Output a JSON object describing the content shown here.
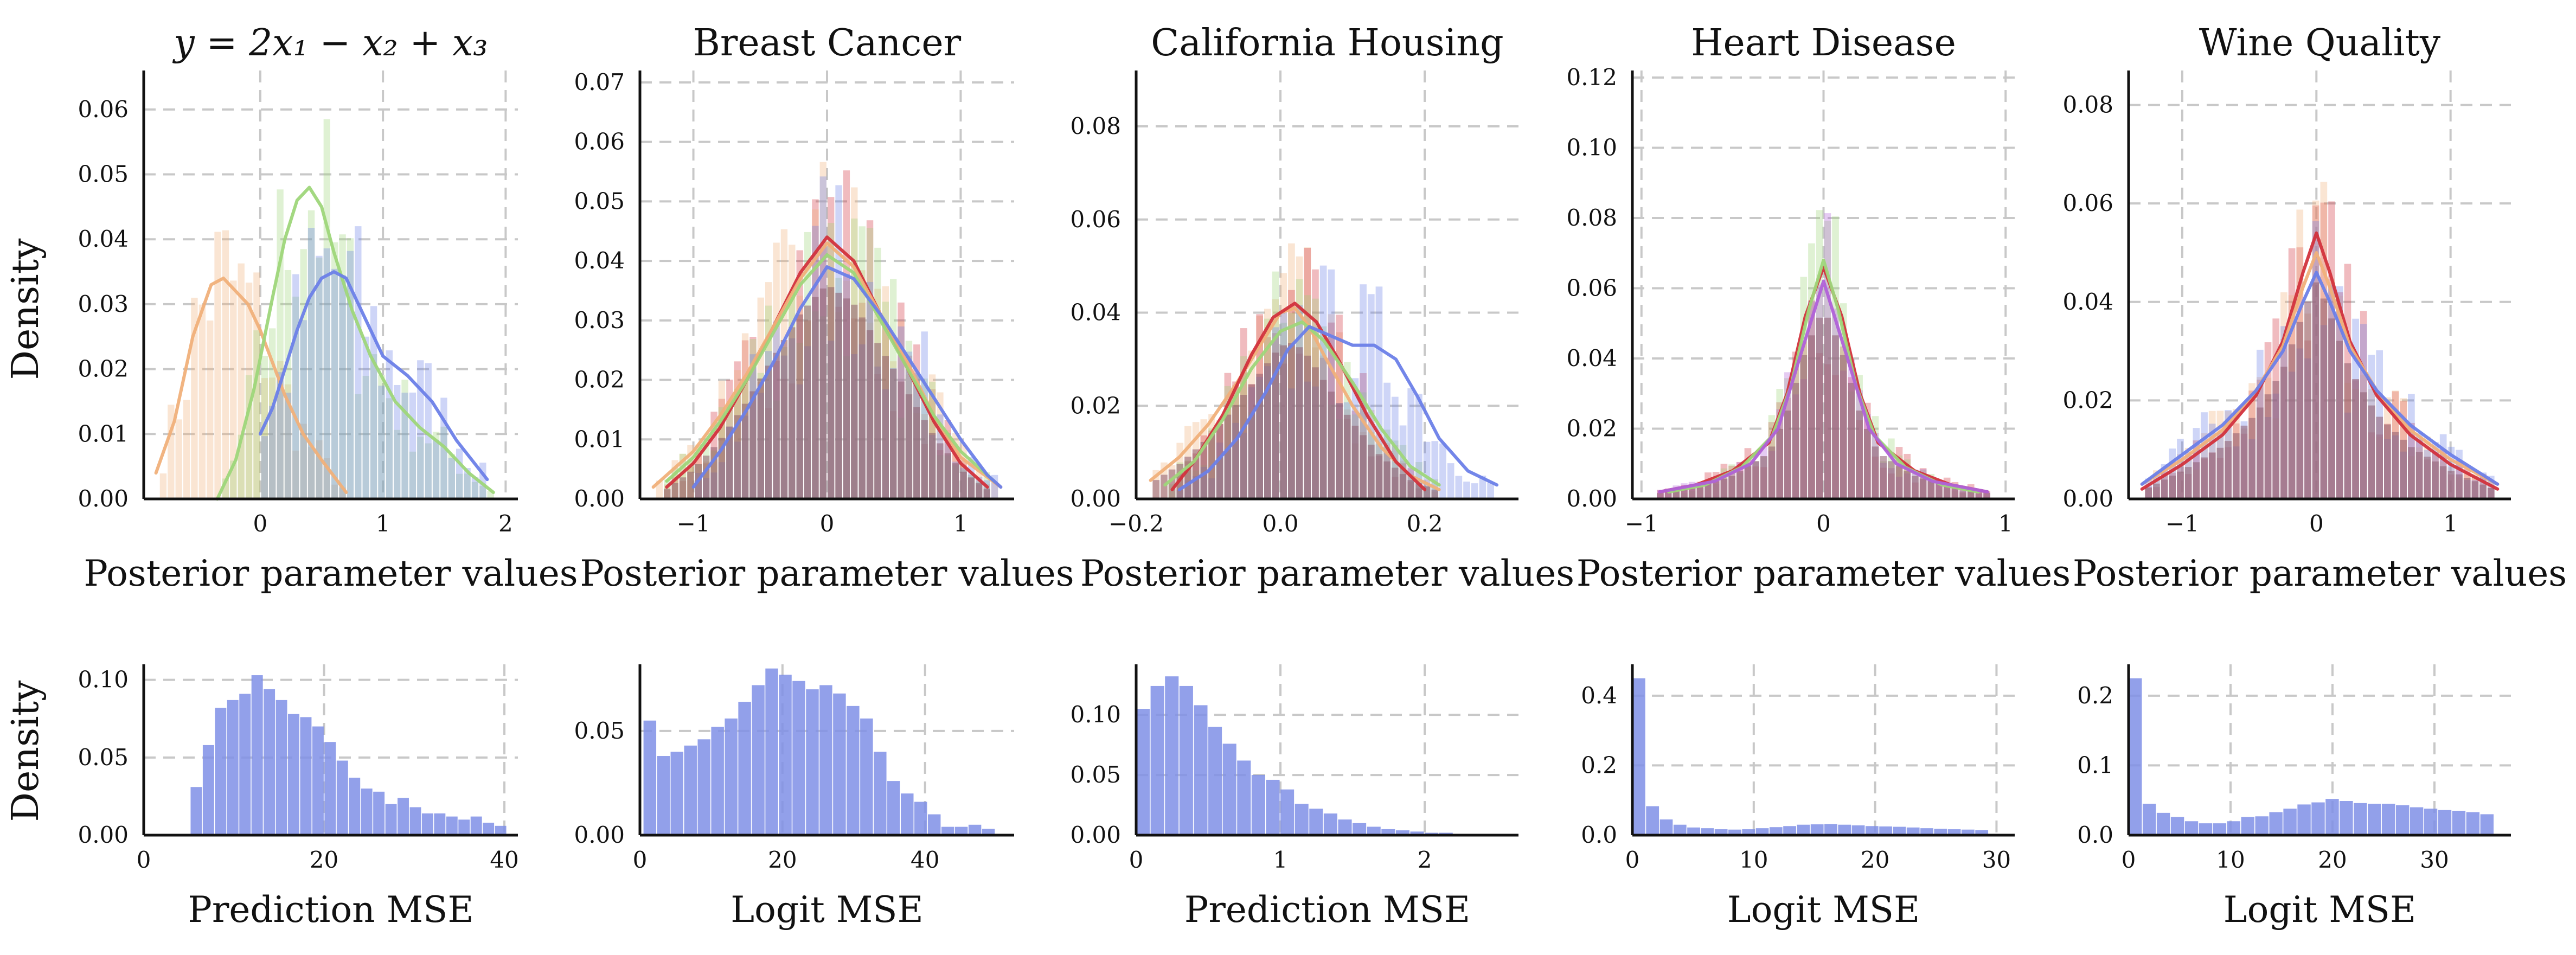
{
  "figure": {
    "ylabel_top": "Density",
    "ylabel_bottom": "Density"
  },
  "colors": {
    "blue": "#6b7fe8",
    "green": "#9ed67a",
    "orange": "#f0b07a",
    "red": "#d2323c",
    "purple": "#b061d8",
    "yellow": "#f2cf6a",
    "cyan": "#7ed3e6",
    "overlap": "#8e5b6e",
    "mse_bar": "#7f8fe6"
  },
  "chart_data": [
    {
      "type": "histogram-kde",
      "title": "y = 2x₁ − x₂ + x₃",
      "xlabel": "Posterior parameter values",
      "xlim": [
        -0.95,
        2.1
      ],
      "ylim": [
        0,
        0.066
      ],
      "xticks": [
        0,
        1,
        2
      ],
      "xtick_labels": [
        "0",
        "1",
        "2"
      ],
      "yticks": [
        0,
        0.01,
        0.02,
        0.03,
        0.04,
        0.05,
        0.06
      ],
      "ytick_labels": [
        "0.00",
        "0.01",
        "0.02",
        "0.03",
        "0.04",
        "0.05",
        "0.06"
      ],
      "grid": true,
      "series": [
        {
          "color": "orange",
          "kde": {
            "x": [
              -0.85,
              -0.7,
              -0.55,
              -0.4,
              -0.3,
              -0.2,
              -0.1,
              0.0,
              0.1,
              0.2,
              0.35,
              0.5,
              0.7
            ],
            "y": [
              0.004,
              0.012,
              0.025,
              0.033,
              0.034,
              0.032,
              0.03,
              0.026,
              0.021,
              0.016,
              0.01,
              0.006,
              0.001
            ]
          }
        },
        {
          "color": "green",
          "kde": {
            "x": [
              -0.35,
              -0.2,
              -0.05,
              0.1,
              0.2,
              0.3,
              0.4,
              0.5,
              0.6,
              0.75,
              0.9,
              1.1,
              1.3,
              1.5,
              1.7,
              1.9
            ],
            "y": [
              0.0,
              0.006,
              0.017,
              0.031,
              0.04,
              0.046,
              0.048,
              0.045,
              0.038,
              0.029,
              0.022,
              0.015,
              0.011,
              0.008,
              0.004,
              0.001
            ]
          }
        },
        {
          "color": "blue",
          "kde": {
            "x": [
              0.0,
              0.1,
              0.2,
              0.3,
              0.4,
              0.5,
              0.6,
              0.7,
              0.8,
              0.9,
              1.0,
              1.2,
              1.4,
              1.6,
              1.85
            ],
            "y": [
              0.01,
              0.014,
              0.02,
              0.026,
              0.031,
              0.034,
              0.035,
              0.034,
              0.03,
              0.026,
              0.022,
              0.019,
              0.015,
              0.009,
              0.003
            ]
          }
        }
      ]
    },
    {
      "type": "histogram-kde",
      "title": "Breast Cancer",
      "xlabel": "Posterior parameter values",
      "xlim": [
        -1.4,
        1.4
      ],
      "ylim": [
        0,
        0.072
      ],
      "xticks": [
        -1,
        0,
        1
      ],
      "xtick_labels": [
        "−1",
        "0",
        "1"
      ],
      "yticks": [
        0,
        0.01,
        0.02,
        0.03,
        0.04,
        0.05,
        0.06,
        0.07
      ],
      "ytick_labels": [
        "0.00",
        "0.01",
        "0.02",
        "0.03",
        "0.04",
        "0.05",
        "0.06",
        "0.07"
      ],
      "grid": true,
      "series": [
        {
          "color": "red",
          "kde": {
            "x": [
              -1.2,
              -1.0,
              -0.8,
              -0.6,
              -0.4,
              -0.2,
              0.0,
              0.2,
              0.4,
              0.6,
              0.8,
              1.0,
              1.2
            ],
            "y": [
              0.002,
              0.006,
              0.012,
              0.02,
              0.029,
              0.038,
              0.044,
              0.04,
              0.031,
              0.022,
              0.013,
              0.006,
              0.002
            ]
          }
        },
        {
          "color": "orange",
          "kde": {
            "x": [
              -1.3,
              -1.0,
              -0.8,
              -0.6,
              -0.4,
              -0.2,
              0.0,
              0.2,
              0.4,
              0.6,
              0.8,
              1.0,
              1.3
            ],
            "y": [
              0.002,
              0.008,
              0.014,
              0.021,
              0.029,
              0.037,
              0.043,
              0.039,
              0.031,
              0.023,
              0.014,
              0.007,
              0.002
            ]
          }
        },
        {
          "color": "green",
          "kde": {
            "x": [
              -1.2,
              -1.0,
              -0.8,
              -0.6,
              -0.4,
              -0.2,
              0.0,
              0.2,
              0.4,
              0.6,
              0.8,
              1.0,
              1.25
            ],
            "y": [
              0.003,
              0.007,
              0.013,
              0.02,
              0.028,
              0.036,
              0.041,
              0.038,
              0.03,
              0.022,
              0.014,
              0.008,
              0.003
            ]
          }
        },
        {
          "color": "blue",
          "kde": {
            "x": [
              -1.0,
              -0.8,
              -0.6,
              -0.4,
              -0.2,
              0.0,
              0.2,
              0.4,
              0.6,
              0.8,
              1.0,
              1.2,
              1.3
            ],
            "y": [
              0.002,
              0.008,
              0.015,
              0.023,
              0.032,
              0.039,
              0.037,
              0.031,
              0.024,
              0.017,
              0.01,
              0.004,
              0.002
            ]
          }
        }
      ]
    },
    {
      "type": "histogram-kde",
      "title": "California Housing",
      "xlabel": "Posterior parameter values",
      "xlim": [
        -0.2,
        0.33
      ],
      "ylim": [
        0,
        0.092
      ],
      "xticks": [
        -0.2,
        0.0,
        0.2
      ],
      "xtick_labels": [
        "−0.2",
        "0.0",
        "0.2"
      ],
      "yticks": [
        0,
        0.02,
        0.04,
        0.06,
        0.08
      ],
      "ytick_labels": [
        "0.00",
        "0.02",
        "0.04",
        "0.06",
        "0.08"
      ],
      "grid": true,
      "series": [
        {
          "color": "orange",
          "kde": {
            "x": [
              -0.18,
              -0.14,
              -0.1,
              -0.06,
              -0.02,
              0.0,
              0.02,
              0.04,
              0.06,
              0.1,
              0.14,
              0.18,
              0.22
            ],
            "y": [
              0.004,
              0.009,
              0.016,
              0.025,
              0.035,
              0.04,
              0.041,
              0.037,
              0.031,
              0.02,
              0.011,
              0.005,
              0.002
            ]
          }
        },
        {
          "color": "red",
          "kde": {
            "x": [
              -0.15,
              -0.12,
              -0.08,
              -0.04,
              -0.01,
              0.02,
              0.05,
              0.08,
              0.12,
              0.16,
              0.2
            ],
            "y": [
              0.002,
              0.008,
              0.018,
              0.031,
              0.039,
              0.042,
              0.038,
              0.03,
              0.018,
              0.008,
              0.002
            ]
          }
        },
        {
          "color": "green",
          "kde": {
            "x": [
              -0.16,
              -0.12,
              -0.08,
              -0.04,
              0.0,
              0.03,
              0.06,
              0.1,
              0.14,
              0.18,
              0.22
            ],
            "y": [
              0.003,
              0.008,
              0.017,
              0.028,
              0.036,
              0.038,
              0.034,
              0.025,
              0.015,
              0.007,
              0.003
            ]
          }
        },
        {
          "color": "blue",
          "kde": {
            "x": [
              -0.14,
              -0.1,
              -0.06,
              -0.02,
              0.01,
              0.04,
              0.07,
              0.1,
              0.13,
              0.16,
              0.19,
              0.22,
              0.26,
              0.3
            ],
            "y": [
              0.002,
              0.006,
              0.013,
              0.023,
              0.032,
              0.037,
              0.035,
              0.033,
              0.033,
              0.03,
              0.022,
              0.013,
              0.006,
              0.003
            ]
          }
        }
      ]
    },
    {
      "type": "histogram-kde",
      "title": "Heart Disease",
      "xlabel": "Posterior parameter values",
      "xlim": [
        -1.05,
        1.05
      ],
      "ylim": [
        0,
        0.122
      ],
      "xticks": [
        -1,
        0,
        1
      ],
      "xtick_labels": [
        "−1",
        "0",
        "1"
      ],
      "yticks": [
        0,
        0.02,
        0.04,
        0.06,
        0.08,
        0.1,
        0.12
      ],
      "ytick_labels": [
        "0.00",
        "0.02",
        "0.04",
        "0.06",
        "0.08",
        "0.10",
        "0.12"
      ],
      "grid": true,
      "series": [
        {
          "color": "red",
          "kde": {
            "x": [
              -0.9,
              -0.7,
              -0.5,
              -0.3,
              -0.2,
              -0.1,
              0.0,
              0.1,
              0.2,
              0.3,
              0.5,
              0.7,
              0.9
            ],
            "y": [
              0.002,
              0.004,
              0.008,
              0.016,
              0.03,
              0.052,
              0.066,
              0.052,
              0.03,
              0.016,
              0.008,
              0.004,
              0.002
            ]
          }
        },
        {
          "color": "green",
          "kde": {
            "x": [
              -0.85,
              -0.65,
              -0.45,
              -0.28,
              -0.18,
              -0.08,
              0.0,
              0.08,
              0.18,
              0.28,
              0.45,
              0.65,
              0.85
            ],
            "y": [
              0.002,
              0.004,
              0.009,
              0.018,
              0.032,
              0.054,
              0.068,
              0.054,
              0.032,
              0.018,
              0.009,
              0.004,
              0.002
            ]
          }
        },
        {
          "color": "purple",
          "kde": {
            "x": [
              -0.9,
              -0.6,
              -0.4,
              -0.25,
              -0.12,
              0.0,
              0.12,
              0.25,
              0.4,
              0.6,
              0.9
            ],
            "y": [
              0.002,
              0.005,
              0.01,
              0.02,
              0.042,
              0.062,
              0.042,
              0.02,
              0.01,
              0.005,
              0.002
            ]
          }
        }
      ]
    },
    {
      "type": "histogram-kde",
      "title": "Wine Quality",
      "xlabel": "Posterior parameter values",
      "xlim": [
        -1.4,
        1.45
      ],
      "ylim": [
        0,
        0.087
      ],
      "xticks": [
        -1,
        0,
        1
      ],
      "xtick_labels": [
        "−1",
        "0",
        "1"
      ],
      "yticks": [
        0,
        0.02,
        0.04,
        0.06,
        0.08
      ],
      "ytick_labels": [
        "0.00",
        "0.02",
        "0.04",
        "0.06",
        "0.08"
      ],
      "grid": true,
      "series": [
        {
          "color": "red",
          "kde": {
            "x": [
              -1.3,
              -1.0,
              -0.7,
              -0.45,
              -0.25,
              -0.1,
              0.0,
              0.1,
              0.25,
              0.45,
              0.7,
              1.0,
              1.35
            ],
            "y": [
              0.002,
              0.007,
              0.013,
              0.021,
              0.032,
              0.046,
              0.054,
              0.046,
              0.032,
              0.021,
              0.013,
              0.007,
              0.002
            ]
          }
        },
        {
          "color": "orange",
          "kde": {
            "x": [
              -1.3,
              -1.0,
              -0.7,
              -0.45,
              -0.25,
              -0.1,
              0.0,
              0.1,
              0.25,
              0.45,
              0.7,
              1.0,
              1.35
            ],
            "y": [
              0.003,
              0.008,
              0.014,
              0.022,
              0.031,
              0.043,
              0.05,
              0.043,
              0.031,
              0.022,
              0.014,
              0.008,
              0.003
            ]
          }
        },
        {
          "color": "blue",
          "kde": {
            "x": [
              -1.3,
              -1.0,
              -0.7,
              -0.45,
              -0.25,
              -0.1,
              0.0,
              0.1,
              0.25,
              0.45,
              0.7,
              1.0,
              1.35
            ],
            "y": [
              0.003,
              0.009,
              0.015,
              0.022,
              0.03,
              0.04,
              0.046,
              0.04,
              0.03,
              0.022,
              0.015,
              0.009,
              0.003
            ]
          }
        }
      ]
    },
    {
      "type": "histogram",
      "xlabel": "Prediction MSE",
      "xlim": [
        0,
        41.5
      ],
      "ylim": [
        0,
        0.11
      ],
      "xticks": [
        0,
        20,
        40
      ],
      "xtick_labels": [
        "0",
        "20",
        "40"
      ],
      "yticks": [
        0,
        0.05,
        0.1
      ],
      "ytick_labels": [
        "0.00",
        "0.05",
        "0.10"
      ],
      "grid": true,
      "bin_start": 5.2,
      "bin_width": 1.35,
      "values": [
        0.031,
        0.058,
        0.082,
        0.087,
        0.091,
        0.103,
        0.094,
        0.087,
        0.078,
        0.076,
        0.07,
        0.06,
        0.048,
        0.037,
        0.03,
        0.028,
        0.02,
        0.024,
        0.018,
        0.014,
        0.014,
        0.012,
        0.01,
        0.012,
        0.008,
        0.006
      ]
    },
    {
      "type": "histogram",
      "xlabel": "Logit MSE",
      "xlim": [
        0,
        52.5
      ],
      "ylim": [
        0,
        0.082
      ],
      "xticks": [
        0,
        20,
        40
      ],
      "xtick_labels": [
        "0",
        "20",
        "40"
      ],
      "yticks": [
        0,
        0.05
      ],
      "ytick_labels": [
        "0.00",
        "0.05"
      ],
      "grid": true,
      "bin_start": 0.5,
      "bin_width": 1.9,
      "values": [
        0.055,
        0.038,
        0.04,
        0.043,
        0.046,
        0.052,
        0.056,
        0.064,
        0.072,
        0.08,
        0.077,
        0.074,
        0.07,
        0.072,
        0.068,
        0.062,
        0.056,
        0.04,
        0.026,
        0.02,
        0.016,
        0.01,
        0.004,
        0.004,
        0.005,
        0.003
      ]
    },
    {
      "type": "histogram",
      "xlabel": "Prediction MSE",
      "xlim": [
        0,
        2.65
      ],
      "ylim": [
        0,
        0.142
      ],
      "xticks": [
        0,
        1,
        2
      ],
      "xtick_labels": [
        "0",
        "1",
        "2"
      ],
      "yticks": [
        0,
        0.05,
        0.1
      ],
      "ytick_labels": [
        "0.00",
        "0.05",
        "0.10"
      ],
      "grid": true,
      "bin_start": 0.0,
      "bin_width": 0.1,
      "values": [
        0.105,
        0.124,
        0.132,
        0.124,
        0.108,
        0.09,
        0.076,
        0.062,
        0.05,
        0.046,
        0.038,
        0.026,
        0.022,
        0.018,
        0.013,
        0.01,
        0.007,
        0.005,
        0.004,
        0.003,
        0.002,
        0.002,
        0.001,
        0.001,
        0.001
      ]
    },
    {
      "type": "histogram",
      "xlabel": "Logit MSE",
      "xlim": [
        0,
        31.5
      ],
      "ylim": [
        0,
        0.49
      ],
      "xticks": [
        0,
        10,
        20,
        30
      ],
      "xtick_labels": [
        "0",
        "10",
        "20",
        "30"
      ],
      "yticks": [
        0,
        0.2,
        0.4
      ],
      "ytick_labels": [
        "0.0",
        "0.2",
        "0.4"
      ],
      "grid": true,
      "bin_start": 0.0,
      "bin_width": 1.13,
      "values": [
        0.45,
        0.083,
        0.045,
        0.03,
        0.022,
        0.02,
        0.017,
        0.016,
        0.017,
        0.02,
        0.023,
        0.026,
        0.03,
        0.031,
        0.032,
        0.03,
        0.028,
        0.026,
        0.025,
        0.024,
        0.022,
        0.02,
        0.018,
        0.017,
        0.016,
        0.014
      ]
    },
    {
      "type": "histogram",
      "xlabel": "Logit MSE",
      "xlim": [
        0,
        37.5
      ],
      "ylim": [
        0,
        0.245
      ],
      "xticks": [
        0,
        10,
        20,
        30
      ],
      "xtick_labels": [
        "0",
        "10",
        "20",
        "30"
      ],
      "yticks": [
        0,
        0.1,
        0.2
      ],
      "ytick_labels": [
        "0.0",
        "0.1",
        "0.2"
      ],
      "grid": true,
      "bin_start": 0.0,
      "bin_width": 1.38,
      "values": [
        0.225,
        0.045,
        0.032,
        0.026,
        0.02,
        0.017,
        0.017,
        0.02,
        0.026,
        0.027,
        0.033,
        0.038,
        0.044,
        0.047,
        0.052,
        0.049,
        0.046,
        0.045,
        0.045,
        0.043,
        0.04,
        0.038,
        0.036,
        0.035,
        0.033,
        0.03
      ]
    }
  ]
}
